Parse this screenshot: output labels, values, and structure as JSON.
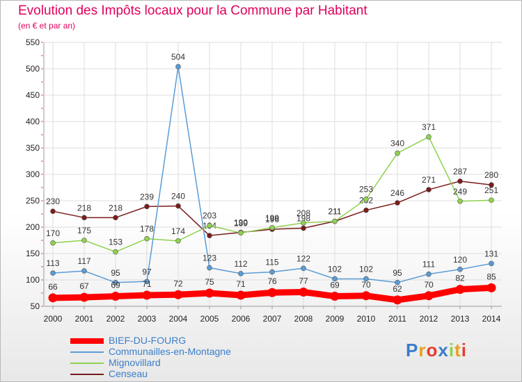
{
  "header": {
    "title": "Evolution des Impôts locaux pour la Commune par Habitant",
    "subtitle": "(en € et par an)"
  },
  "logo": {
    "text": "Proxiti"
  },
  "chart_data": {
    "type": "line",
    "title": "Evolution des Impôts locaux pour la Commune par Habitant",
    "subtitle": "(en € et par an)",
    "xlabel": "",
    "ylabel": "",
    "x": [
      "2000",
      "2001",
      "2002",
      "2003",
      "2004",
      "2005",
      "2006",
      "2007",
      "2008",
      "2009",
      "2010",
      "2011",
      "2012",
      "2013",
      "2014"
    ],
    "ylim": [
      50,
      550
    ],
    "yticks": [
      "50",
      "100",
      "150",
      "200",
      "250",
      "300",
      "350",
      "400",
      "450",
      "500",
      "550"
    ],
    "grid": true,
    "legend_position": "bottom-left",
    "series": [
      {
        "name": "BIEF-DU-FOURG",
        "color": "#ff0000",
        "values": [
          66,
          67,
          69,
          71,
          72,
          75,
          71,
          76,
          77,
          69,
          70,
          62,
          70,
          82,
          85
        ]
      },
      {
        "name": "Communailles-en-Montagne",
        "color": "#5b9bd5",
        "values": [
          113,
          117,
          95,
          97,
          504,
          123,
          112,
          115,
          122,
          102,
          102,
          95,
          111,
          120,
          131
        ]
      },
      {
        "name": "Mignovillard",
        "color": "#8fd14f",
        "values": [
          170,
          175,
          153,
          178,
          174,
          203,
          189,
          199,
          208,
          211,
          253,
          340,
          371,
          249,
          251
        ]
      },
      {
        "name": "Censeau",
        "color": "#7a1c1c",
        "values": [
          230,
          218,
          218,
          239,
          240,
          184,
          190,
          196,
          198,
          211,
          232,
          246,
          271,
          287,
          280
        ]
      }
    ]
  }
}
